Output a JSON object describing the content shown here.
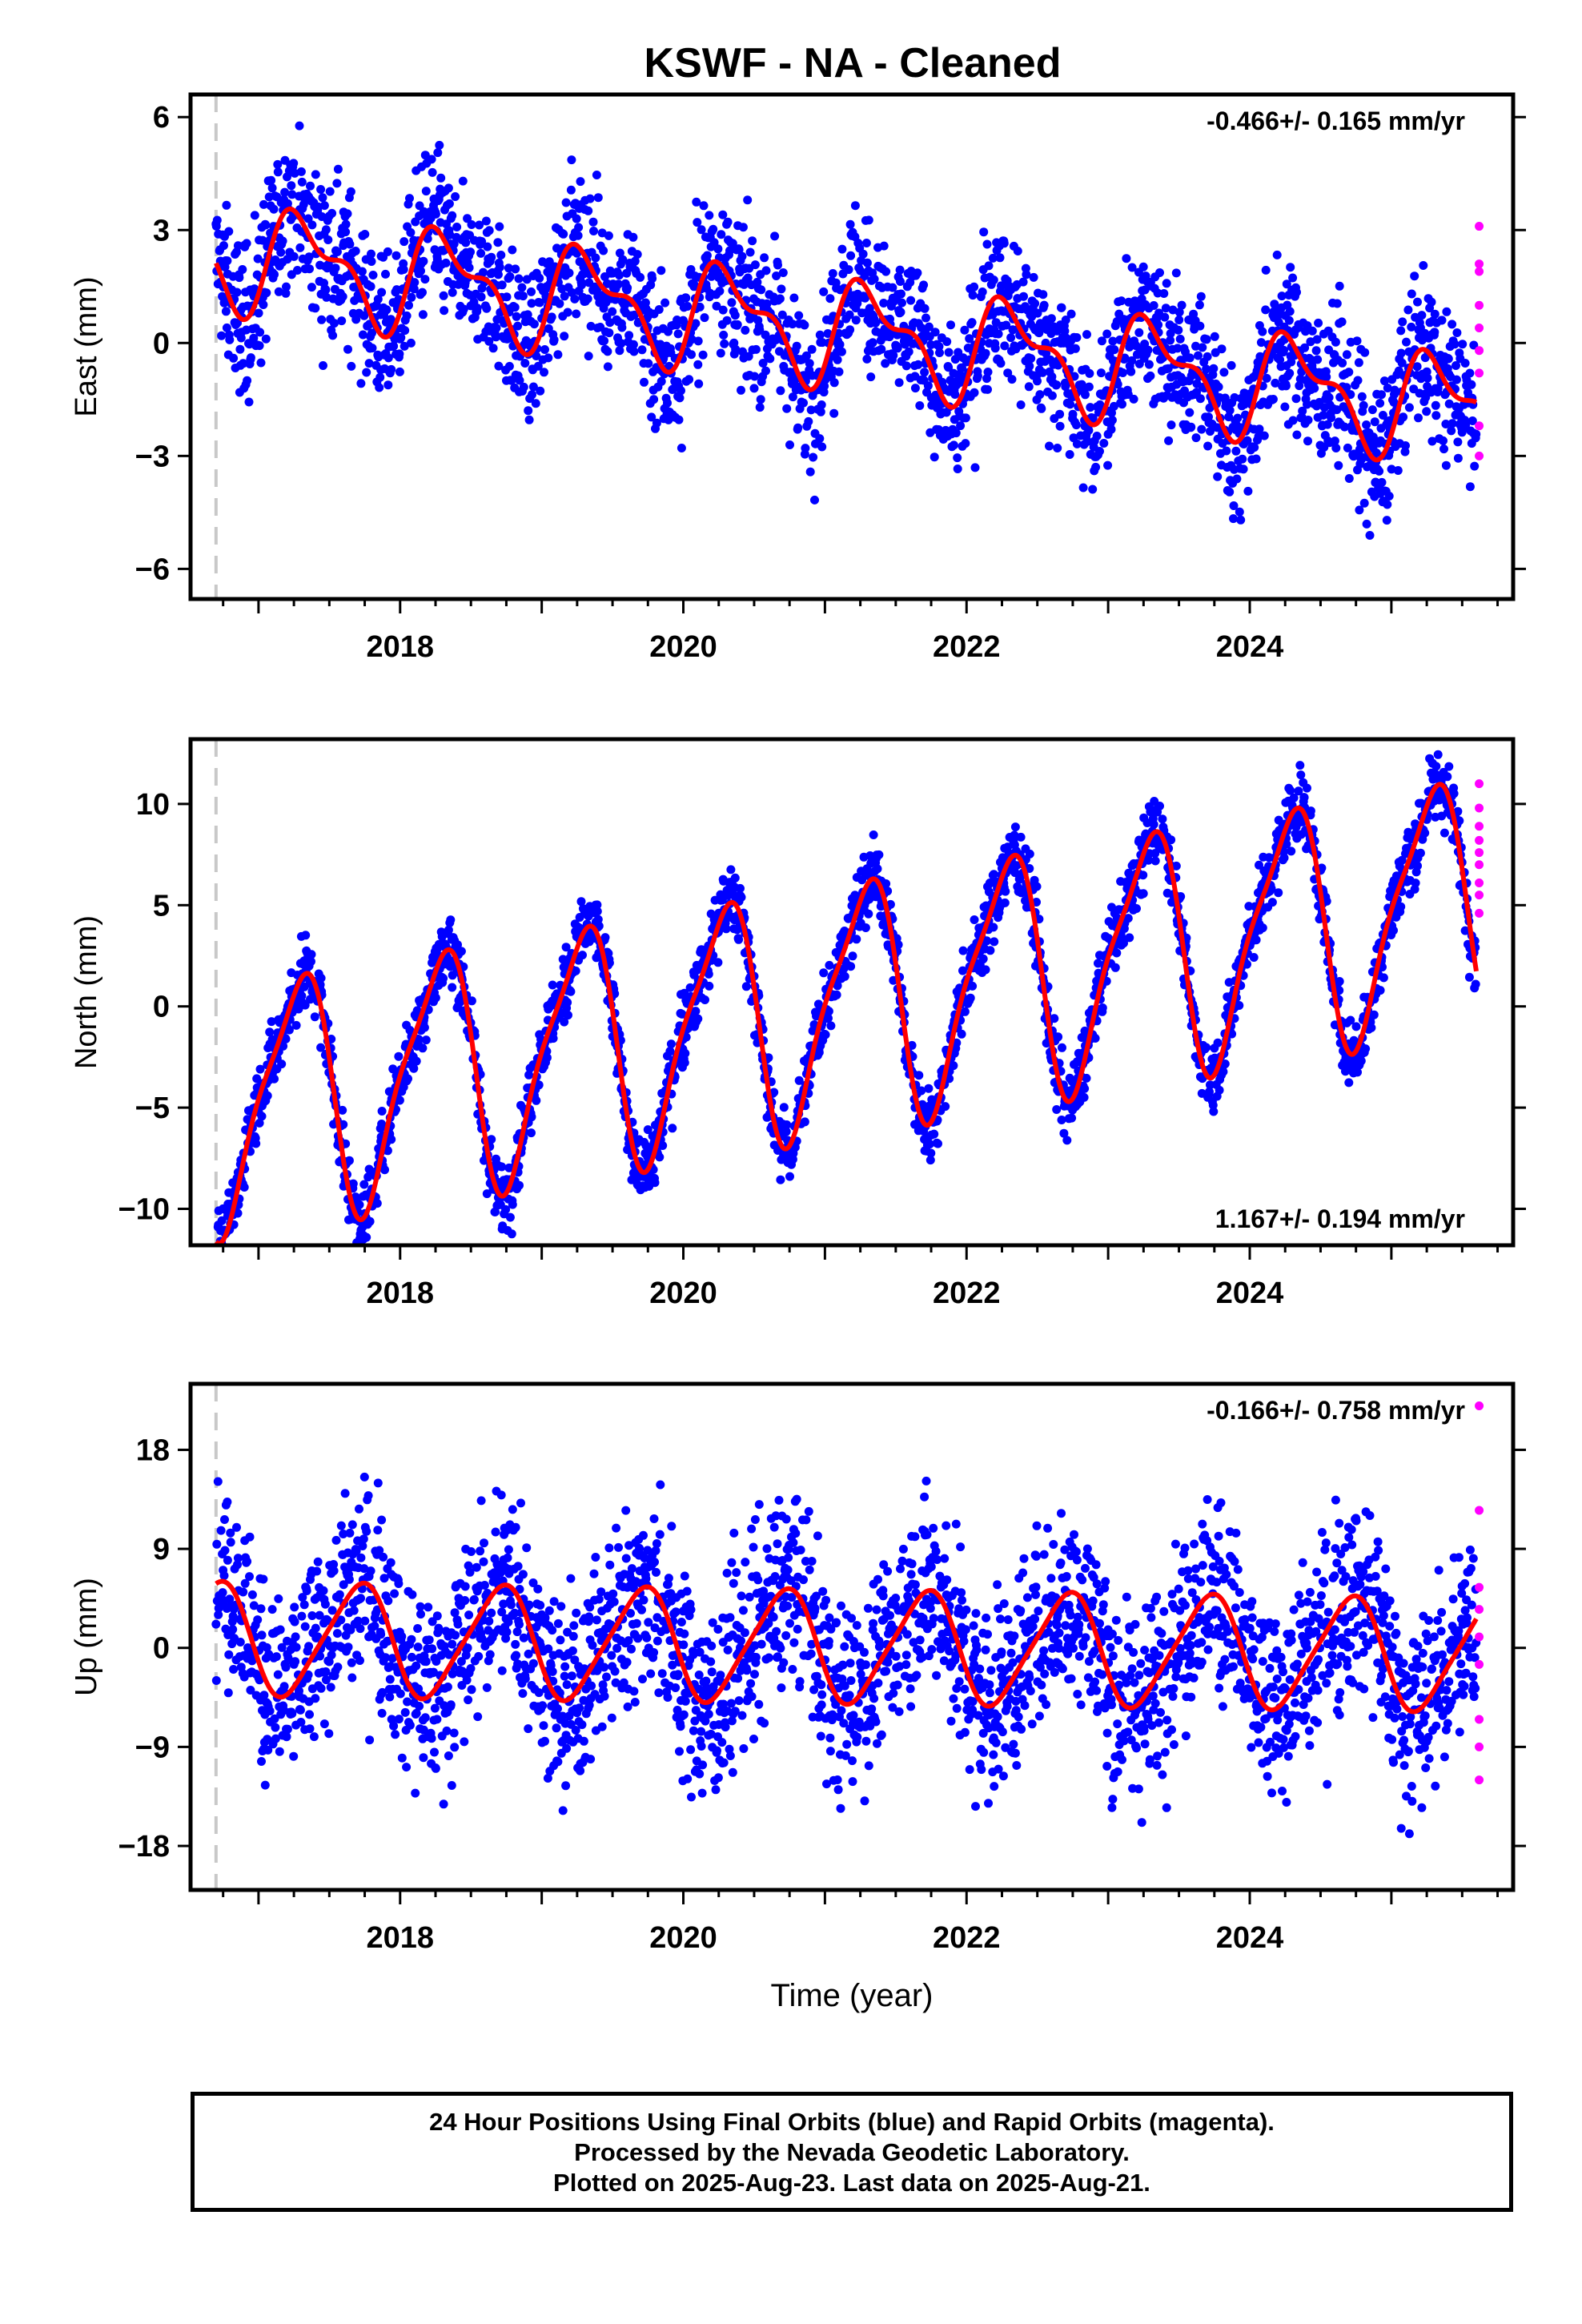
{
  "title": "KSWF  - NA - Cleaned",
  "footer": {
    "line1": "24 Hour Positions Using Final Orbits (blue) and Rapid Orbits (magenta).",
    "line2": "Processed by the Nevada Geodetic Laboratory.",
    "line3": "Plotted on 2025-Aug-23. Last data on 2025-Aug-21."
  },
  "colors": {
    "final": "#0000ff",
    "rapid": "#ff00ff",
    "model": "#ff0000",
    "break": "#c8c8c8"
  },
  "chart_data": [
    {
      "type": "scatter",
      "ylabel": "East (mm)",
      "xlabel": "",
      "rate_text": "-0.466+/- 0.165 mm/yr",
      "rate_position": "top-right",
      "xlim": [
        2016.52,
        2025.86
      ],
      "ylim": [
        -6.8,
        6.6
      ],
      "xticks": [
        2018,
        2020,
        2022,
        2024
      ],
      "yticks": [
        -6,
        -3,
        0,
        3,
        6
      ],
      "ytick_labels": [
        "−6",
        "−3",
        "0",
        "3",
        "6"
      ],
      "break_x": 2016.7,
      "model": {
        "t0": 2020.5,
        "offset": 0.6,
        "slope": -0.466,
        "annual": 1.2,
        "phase": 0.08,
        "semiannual": 0.6,
        "semiphase": 0.55,
        "start": 2016.7,
        "end": 2025.6,
        "noise": 1.0
      },
      "rapid_x": 2025.62,
      "rapid_values": [
        3.1,
        2.1,
        1.9,
        1.0,
        0.4,
        -0.2,
        -0.8,
        -2.2,
        -3.0
      ]
    },
    {
      "type": "scatter",
      "ylabel": "North (mm)",
      "xlabel": "",
      "rate_text": "1.167+/- 0.194 mm/yr",
      "rate_position": "bottom-right",
      "xlim": [
        2016.52,
        2025.86
      ],
      "ylim": [
        -11.8,
        13.2
      ],
      "xticks": [
        2018,
        2020,
        2022,
        2024
      ],
      "yticks": [
        -10,
        -5,
        0,
        5,
        10
      ],
      "ytick_labels": [
        "−10",
        "−5",
        "0",
        "5",
        "10"
      ],
      "break_x": 2016.7,
      "model": {
        "t0": 2020.5,
        "offset": -0.6,
        "slope": 1.167,
        "annual": 5.8,
        "phase": 0.02,
        "semiannual": 1.4,
        "semiphase": 0.3,
        "start": 2016.7,
        "end": 2025.6,
        "noise": 0.9
      },
      "rapid_x": 2025.62,
      "rapid_values": [
        11.0,
        9.8,
        8.9,
        8.2,
        7.6,
        7.0,
        6.1,
        5.5,
        4.6
      ]
    },
    {
      "type": "scatter",
      "ylabel": "Up (mm)",
      "xlabel": "Time (year)",
      "rate_text": "-0.166+/- 0.758 mm/yr",
      "rate_position": "top-right",
      "xlim": [
        2016.52,
        2025.86
      ],
      "ylim": [
        -22,
        24
      ],
      "xticks": [
        2018,
        2020,
        2022,
        2024
      ],
      "yticks": [
        -18,
        -9,
        0,
        9,
        18
      ],
      "ytick_labels": [
        "−18",
        "−9",
        "0",
        "9",
        "18"
      ],
      "break_x": 2016.7,
      "model": {
        "t0": 2020.5,
        "offset": 0.2,
        "slope": -0.166,
        "annual": 5.0,
        "phase": 0.45,
        "semiannual": 0.8,
        "semiphase": 0.2,
        "start": 2016.7,
        "end": 2025.6,
        "noise": 4.5
      },
      "rapid_x": 2025.62,
      "rapid_values": [
        22,
        12.5,
        5.5,
        3.5,
        1.0,
        -1.5,
        -6.5,
        -9.0,
        -12.0
      ]
    }
  ]
}
